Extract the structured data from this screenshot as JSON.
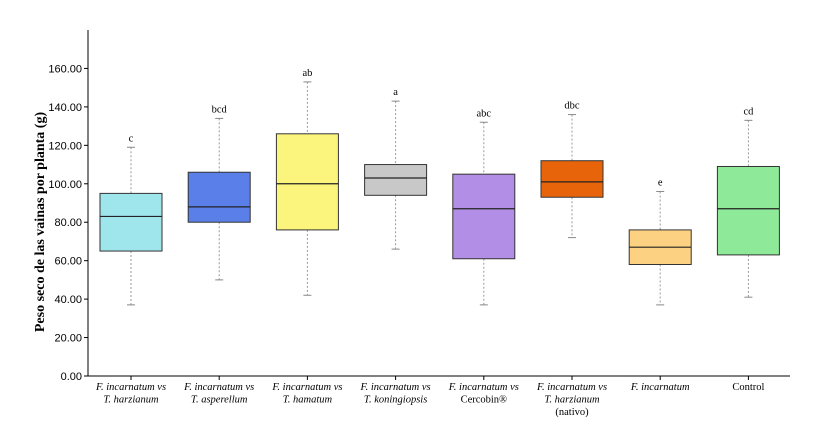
{
  "chart_data": {
    "type": "box",
    "title": "",
    "xlabel": "",
    "ylabel": "Peso seco de las vainas por planta (g)",
    "ylim": [
      0,
      180
    ],
    "yticks": [
      0,
      20,
      40,
      60,
      80,
      100,
      120,
      140,
      160
    ],
    "ytick_labels": [
      "0.00",
      "20.00",
      "40.00",
      "60.00",
      "80.00",
      "100.00",
      "120.00",
      "140.00",
      "160.00"
    ],
    "grid": false,
    "categories": [
      {
        "line1": "F. incarnatum vs",
        "line2": "T. harzianum",
        "line3": "",
        "italic2": true
      },
      {
        "line1": "F. incarnatum vs",
        "line2": "T. asperellum",
        "line3": "",
        "italic2": true
      },
      {
        "line1": "F. incarnatum vs",
        "line2": "T. hamatum",
        "line3": "",
        "italic2": true
      },
      {
        "line1": "F. incarnatum vs",
        "line2": "T. koningiopsis",
        "line3": "",
        "italic2": true
      },
      {
        "line1": "F. incarnatum vs",
        "line2": "Cercobin®",
        "line3": "",
        "italic2": false
      },
      {
        "line1": "F. incarnatum vs",
        "line2": "T. harzianum",
        "line3": "(nativo)",
        "italic2": true
      },
      {
        "line1": "F. incarnatum",
        "line2": "",
        "line3": "",
        "italic2": true
      },
      {
        "line1": "Control",
        "line2": "",
        "line3": "",
        "italic2": false,
        "italic1": false
      }
    ],
    "series": [
      {
        "min": 37,
        "q1": 65,
        "median": 83,
        "q3": 95,
        "max": 119,
        "letter": "c",
        "color": "#9fe5ec"
      },
      {
        "min": 50,
        "q1": 80,
        "median": 88,
        "q3": 106,
        "max": 134,
        "letter": "bcd",
        "color": "#5b7fe8"
      },
      {
        "min": 42,
        "q1": 76,
        "median": 100,
        "q3": 126,
        "max": 153,
        "letter": "ab",
        "color": "#fbf57d"
      },
      {
        "min": 66,
        "q1": 94,
        "median": 103,
        "q3": 110,
        "max": 143,
        "letter": "a",
        "color": "#c8c8c8"
      },
      {
        "min": 37,
        "q1": 61,
        "median": 87,
        "q3": 105,
        "max": 132,
        "letter": "abc",
        "color": "#b28ee6"
      },
      {
        "min": 72,
        "q1": 93,
        "median": 101,
        "q3": 112,
        "max": 136,
        "letter": "dbc",
        "color": "#e8640b"
      },
      {
        "min": 37,
        "q1": 58,
        "median": 67,
        "q3": 76,
        "max": 96,
        "letter": "e",
        "color": "#fdd182"
      },
      {
        "min": 41,
        "q1": 63,
        "median": 87,
        "q3": 109,
        "max": 133,
        "letter": "cd",
        "color": "#8eea98"
      }
    ]
  }
}
